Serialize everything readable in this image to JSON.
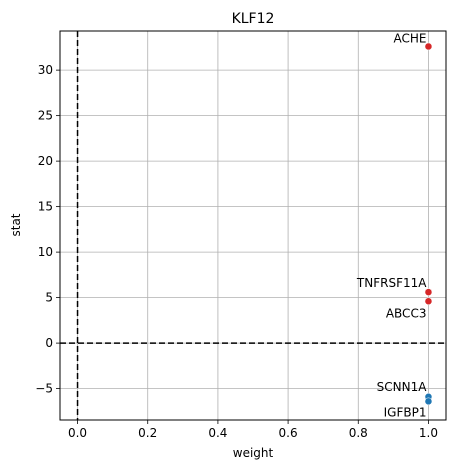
{
  "chart_data": {
    "type": "scatter",
    "title": "KLF12",
    "xlabel": "weight",
    "ylabel": "stat",
    "xlim": [
      -0.05,
      1.05
    ],
    "ylim": [
      -8.45,
      34.3
    ],
    "xticks": [
      0.0,
      0.2,
      0.4,
      0.6,
      0.8,
      1.0
    ],
    "xtick_labels": [
      "0.0",
      "0.2",
      "0.4",
      "0.6",
      "0.8",
      "1.0"
    ],
    "yticks": [
      -5,
      0,
      5,
      10,
      15,
      20,
      25,
      30
    ],
    "ytick_labels": [
      "−5",
      "0",
      "5",
      "10",
      "15",
      "20",
      "25",
      "30"
    ],
    "grid": true,
    "reference_lines": [
      {
        "axis": "x",
        "value": 0,
        "style": "dashed"
      },
      {
        "axis": "y",
        "value": 0,
        "style": "dashed"
      }
    ],
    "points": [
      {
        "label": "ACHE",
        "x": 1.0,
        "y": 32.6,
        "color": "#d62728"
      },
      {
        "label": "TNFRSF11A",
        "x": 1.0,
        "y": 5.6,
        "color": "#d62728"
      },
      {
        "label": "ABCC3",
        "x": 1.0,
        "y": 4.6,
        "color": "#d62728"
      },
      {
        "label": "SCNN1A",
        "x": 1.0,
        "y": -5.9,
        "color": "#1f77b4"
      },
      {
        "label": "IGFBP1",
        "x": 1.0,
        "y": -6.4,
        "color": "#1f77b4"
      }
    ]
  }
}
